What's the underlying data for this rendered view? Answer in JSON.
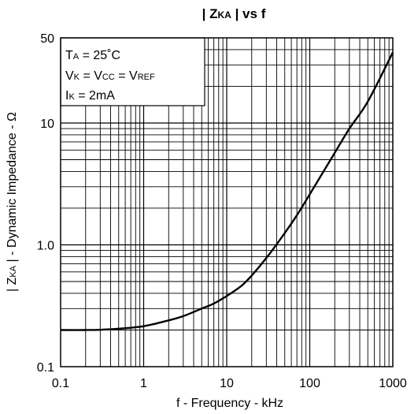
{
  "chart_data": {
    "type": "line",
    "title": {
      "prefix": "| Z",
      "sub": "KA",
      "suffix": " | vs  f"
    },
    "xlabel": "f - Frequency - kHz",
    "ylabel": {
      "prefix": "| Z",
      "sub": "KA",
      "suffix": " | - Dynamic Impedance - Ω"
    },
    "x_scale": "log",
    "y_scale": "log",
    "xlim": [
      0.1,
      1000
    ],
    "ylim": [
      0.1,
      50
    ],
    "x_ticks": [
      {
        "value": 0.1,
        "label": "0.1"
      },
      {
        "value": 1,
        "label": "1"
      },
      {
        "value": 10,
        "label": "10"
      },
      {
        "value": 100,
        "label": "100"
      },
      {
        "value": 1000,
        "label": "1000"
      }
    ],
    "y_ticks": [
      {
        "value": 0.1,
        "label": "0.1"
      },
      {
        "value": 1,
        "label": "1.0"
      },
      {
        "value": 10,
        "label": "10"
      },
      {
        "value": 50,
        "label": "50"
      }
    ],
    "grid": true,
    "legend_placement": "top-left",
    "conditions": [
      {
        "main": "T",
        "sub": "A",
        "rest": " = 25˚C"
      },
      {
        "main": "V",
        "sub": "K",
        "rest": " = V",
        "sub2": "CC",
        "rest2": " = V",
        "sub3": "REF"
      },
      {
        "main": "I",
        "sub": "K",
        "rest": " = 2mA"
      }
    ],
    "series": [
      {
        "x": [
          0.1,
          0.2,
          0.3,
          0.5,
          1,
          2,
          3,
          5,
          7,
          10,
          15,
          20,
          30,
          50,
          70,
          100,
          200,
          300,
          500,
          1000
        ],
        "y": [
          0.2,
          0.2,
          0.201,
          0.205,
          0.215,
          0.24,
          0.26,
          0.3,
          0.33,
          0.38,
          0.46,
          0.56,
          0.78,
          1.25,
          1.75,
          2.6,
          5.7,
          9.0,
          15.0,
          38.0
        ]
      }
    ]
  }
}
